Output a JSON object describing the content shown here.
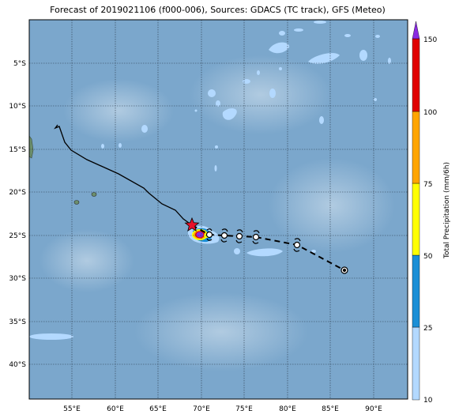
{
  "title": "Forecast of 2019021106 (f000-006), Sources: GDACS (TC track), GFS (Meteo)",
  "axes": {
    "lon_ticks": [
      "55°E",
      "60°E",
      "65°E",
      "70°E",
      "75°E",
      "80°E",
      "85°E",
      "90°E"
    ],
    "lat_ticks": [
      "5°S",
      "10°S",
      "15°S",
      "20°S",
      "25°S",
      "30°S",
      "35°S",
      "40°S"
    ]
  },
  "colorbar": {
    "label": "Total Precipitation (mm/6h)",
    "ticks": [
      "10",
      "25",
      "50",
      "75",
      "100",
      "150"
    ],
    "colors": [
      "#b3d9ff",
      "#1b8fd6",
      "#ffff00",
      "#ffa500",
      "#e00000",
      "#8a2be2"
    ]
  },
  "colors": {
    "ocean": "#7ba7cc",
    "land": "#6c8f6c",
    "track": "#000000",
    "current_position": "#e8102a"
  },
  "storm": {
    "current_marker": "star",
    "forecast_marker": "tropical-cyclone-symbol"
  }
}
